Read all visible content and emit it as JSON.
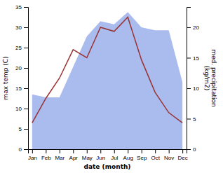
{
  "chart_data": {
    "type": "line",
    "categories": [
      "Jan",
      "Feb",
      "Mar",
      "Apr",
      "May",
      "Jun",
      "Jul",
      "Aug",
      "Sep",
      "Oct",
      "Nov",
      "Dec"
    ],
    "series": [
      {
        "type": "area",
        "axis": "y2",
        "color": "#aabbee",
        "values": [
          9.0,
          8.5,
          8.5,
          13.5,
          18.5,
          21.0,
          20.5,
          22.5,
          20.0,
          19.5,
          19.5,
          11.0
        ]
      },
      {
        "type": "line",
        "color": "#993333",
        "values": [
          6.5,
          12.5,
          17.5,
          24.5,
          22.5,
          30.0,
          29.0,
          32.5,
          22.0,
          14.0,
          9.0,
          6.5
        ]
      }
    ],
    "xlabel": "date (month)",
    "ylabel": "max temp (C)",
    "y2label": "med. precipitation\n(kg/m2)",
    "ylim": [
      0,
      35
    ],
    "yticks": [
      0,
      5,
      10,
      15,
      20,
      25,
      30,
      35
    ],
    "y2lim": [
      0,
      23.33
    ],
    "y2ticks": [
      0,
      5,
      10,
      15,
      20
    ]
  }
}
